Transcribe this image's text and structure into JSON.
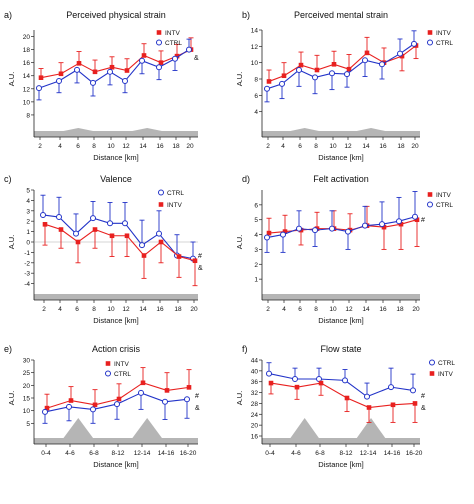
{
  "colors": {
    "intv": "#e8201f",
    "ctrl": "#2233c8",
    "hill": "#b5b5b5"
  },
  "chart_data": [
    {
      "id": "a",
      "type": "line",
      "panel_label": "a)",
      "title": "Perceived physical strain",
      "xlabel": "Distance [km]",
      "ylabel": "A.U.",
      "categories": [
        "2",
        "4",
        "6",
        "8",
        "10",
        "12",
        "14",
        "16",
        "18",
        "20"
      ],
      "ylim": [
        6,
        21
      ],
      "yticks": [
        8,
        10,
        12,
        14,
        16,
        18,
        20
      ],
      "series": [
        {
          "name": "INTV",
          "values": [
            13.7,
            14.3,
            15.9,
            14.6,
            15.3,
            14.8,
            17.1,
            16.0,
            17.0,
            18.0
          ],
          "err": [
            1.4,
            1.7,
            1.8,
            1.8,
            1.6,
            1.8,
            1.8,
            1.8,
            1.8,
            1.8
          ]
        },
        {
          "name": "CTRL",
          "values": [
            12.1,
            13.2,
            14.9,
            12.9,
            14.6,
            13.2,
            16.3,
            15.3,
            16.6,
            18.0
          ],
          "err": [
            1.8,
            1.8,
            2.0,
            2.0,
            2.0,
            1.8,
            2.0,
            1.9,
            1.8,
            1.6
          ]
        }
      ],
      "legend": [
        "INTV",
        "CTRL"
      ],
      "legend_position": "top-right",
      "significance": "&"
    },
    {
      "id": "b",
      "type": "line",
      "panel_label": "b)",
      "title": "Perceived mental strain",
      "xlabel": "Distance [km]",
      "ylabel": "A.U.",
      "categories": [
        "2",
        "4",
        "6",
        "8",
        "10",
        "12",
        "14",
        "16",
        "18",
        "20"
      ],
      "ylim": [
        2,
        14
      ],
      "yticks": [
        4,
        6,
        8,
        10,
        12,
        14
      ],
      "series": [
        {
          "name": "INTV",
          "values": [
            7.7,
            8.4,
            9.7,
            9.1,
            9.8,
            9.2,
            11.2,
            10.0,
            10.8,
            12.1
          ],
          "err": [
            1.4,
            1.6,
            1.6,
            1.8,
            1.6,
            1.8,
            1.9,
            1.8,
            1.8,
            1.6
          ]
        },
        {
          "name": "CTRL",
          "values": [
            6.8,
            7.4,
            9.1,
            8.2,
            8.7,
            8.6,
            10.3,
            9.8,
            11.1,
            12.3
          ],
          "err": [
            1.6,
            1.8,
            2.0,
            2.0,
            2.0,
            1.6,
            2.0,
            1.8,
            1.8,
            1.6
          ]
        }
      ],
      "legend": [
        "INTV",
        "CTRL"
      ],
      "legend_position": "top-left",
      "significance": ""
    },
    {
      "id": "c",
      "type": "line",
      "panel_label": "c)",
      "title": "Valence",
      "xlabel": "Distance [km]",
      "ylabel": "A.U.",
      "categories": [
        "2",
        "4",
        "6",
        "8",
        "10",
        "12",
        "14",
        "16",
        "18",
        "20"
      ],
      "ylim": [
        -5,
        5
      ],
      "yticks": [
        -4,
        -3,
        -2,
        -1,
        0,
        1,
        2,
        3,
        4,
        5
      ],
      "series": [
        {
          "name": "CTRL",
          "values": [
            2.6,
            2.4,
            0.8,
            2.3,
            1.8,
            1.8,
            -0.3,
            0.8,
            -1.3,
            -1.6
          ],
          "err": [
            1.9,
            1.9,
            1.9,
            1.6,
            2.0,
            2.0,
            2.4,
            2.2,
            2.0,
            1.6
          ]
        },
        {
          "name": "INTV",
          "values": [
            1.7,
            1.2,
            0.0,
            1.2,
            0.6,
            0.6,
            -1.3,
            0.0,
            -1.4,
            -1.8
          ],
          "err": [
            2.0,
            1.8,
            2.0,
            1.8,
            2.0,
            2.0,
            2.2,
            2.0,
            2.0,
            2.4
          ]
        }
      ],
      "legend": [
        "CTRL",
        "INTV"
      ],
      "legend_position": "top-right",
      "significance": "# &"
    },
    {
      "id": "d",
      "type": "line",
      "panel_label": "d)",
      "title": "Felt activation",
      "xlabel": "Distance [km]",
      "ylabel": "A.U.",
      "categories": [
        "2",
        "4",
        "6",
        "8",
        "10",
        "12",
        "14",
        "16",
        "18",
        "20"
      ],
      "ylim": [
        0,
        7
      ],
      "yticks": [
        1,
        2,
        3,
        4,
        5,
        6
      ],
      "series": [
        {
          "name": "INTV",
          "values": [
            4.1,
            4.2,
            4.3,
            4.4,
            4.4,
            4.3,
            4.6,
            4.5,
            4.7,
            5.0
          ],
          "err": [
            1.0,
            1.1,
            1.0,
            1.1,
            1.2,
            1.1,
            1.3,
            1.5,
            1.7,
            1.8
          ]
        },
        {
          "name": "CTRL",
          "values": [
            3.8,
            4.0,
            4.4,
            4.3,
            4.4,
            4.2,
            4.6,
            4.7,
            4.9,
            5.2
          ],
          "err": [
            1.0,
            1.2,
            1.2,
            1.1,
            1.2,
            1.2,
            1.3,
            1.5,
            1.6,
            1.7
          ]
        }
      ],
      "legend": [
        "INTV",
        "CTRL"
      ],
      "legend_position": "top-right",
      "significance": "#"
    },
    {
      "id": "e",
      "type": "line",
      "panel_label": "e)",
      "title": "Action crisis",
      "xlabel": "Distance [km]",
      "ylabel": "A.U.",
      "categories": [
        "0-4",
        "4-6",
        "6-8",
        "8-12",
        "12-14",
        "14-16",
        "16-20"
      ],
      "ylim": [
        0,
        30
      ],
      "yticks": [
        5,
        10,
        15,
        20,
        25,
        30
      ],
      "series": [
        {
          "name": "INTV",
          "values": [
            11.0,
            14.0,
            12.3,
            14.6,
            21.0,
            18.0,
            19.2
          ],
          "err": [
            5.5,
            5.5,
            6.0,
            6.0,
            6.0,
            7.0,
            7.0
          ]
        },
        {
          "name": "CTRL",
          "values": [
            9.5,
            11.5,
            10.5,
            12.6,
            17.0,
            13.5,
            14.5
          ],
          "err": [
            4.5,
            5.5,
            5.5,
            6.0,
            6.5,
            7.0,
            7.5
          ]
        }
      ],
      "legend": [
        "INTV",
        "CTRL"
      ],
      "legend_position": "top-center",
      "significance": "# &"
    },
    {
      "id": "f",
      "type": "line",
      "panel_label": "f)",
      "title": "Flow state",
      "xlabel": "Distance [km]",
      "ylabel": "A.U.",
      "categories": [
        "0-4",
        "4-6",
        "6-8",
        "8-12",
        "12-14",
        "14-16",
        "16-20"
      ],
      "ylim": [
        16,
        44
      ],
      "yticks": [
        16,
        20,
        24,
        28,
        32,
        36,
        40,
        44
      ],
      "series": [
        {
          "name": "CTRL",
          "values": [
            39.0,
            37.0,
            37.0,
            36.5,
            30.5,
            34.0,
            32.8
          ],
          "err": [
            4.0,
            4.0,
            4.0,
            4.0,
            5.0,
            7.0,
            6.0
          ]
        },
        {
          "name": "INTV",
          "values": [
            35.5,
            34.0,
            35.5,
            30.0,
            26.5,
            27.5,
            28.0
          ],
          "err": [
            4.0,
            4.5,
            4.5,
            5.0,
            5.5,
            6.5,
            7.0
          ]
        }
      ],
      "legend": [
        "CTRL",
        "INTV"
      ],
      "legend_position": "top-right",
      "significance": "# &"
    }
  ]
}
